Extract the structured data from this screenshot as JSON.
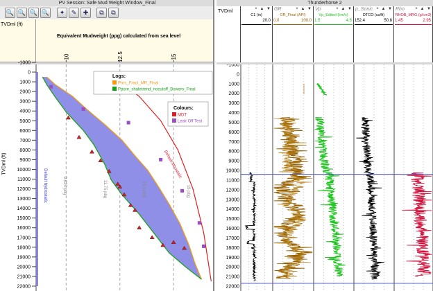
{
  "left_window": {
    "title": "PV Session: Safe Mud Weight Window_Final",
    "toolbar": [
      {
        "name": "zoom-in-icon",
        "glyph": "🔍"
      },
      {
        "name": "zoom-out-icon",
        "glyph": "🔍"
      },
      {
        "name": "zoom-box-icon",
        "glyph": "🔍"
      },
      {
        "name": "zoom-fit-icon",
        "glyph": "🔍"
      },
      {
        "name": "highlight-icon",
        "glyph": "✦"
      },
      {
        "name": "pencil-icon",
        "glyph": "✎"
      },
      {
        "name": "pointer-icon",
        "glyph": "✚"
      },
      {
        "name": "copy-icon",
        "glyph": "⧉"
      },
      {
        "name": "paste-icon",
        "glyph": "⧉"
      }
    ],
    "depth_header": "TVDml (ft)",
    "chart_title": "Equivalent Mudweight (ppg) calculated from sea level",
    "depth_axis_label": "TVDml (ft)"
  },
  "right_window": {
    "title": "Thunderhorse 2",
    "depth_header": "TVDml",
    "track_header_controls": "× ▲ ▼"
  },
  "tracks": [
    {
      "id": "c1",
      "name": "C1",
      "label": "C1 (in)",
      "min": "",
      "max": "20.0",
      "color": "#000000"
    },
    {
      "id": "gr",
      "name": "GR",
      "label": "GR_Final (API)",
      "min": "0.0",
      "max": "100.0",
      "color": "#9a6200"
    },
    {
      "id": "vp",
      "name": "Vp",
      "label": "Vp_Edited (km/s)",
      "min": "1.5",
      "max": "4.5",
      "color": "#1cc41c"
    },
    {
      "id": "psonic",
      "name": "p_Sonic",
      "label": "DTCO (us/ft)",
      "min": "152.4",
      "max": "50.8",
      "color": "#000000"
    },
    {
      "id": "rho",
      "name": "Rho",
      "label": "RHOB_MRG (g/cm3)",
      "min": "1.45",
      "max": "2.95",
      "color": "#d0103a"
    }
  ],
  "chart_data": {
    "type": "area",
    "x_ticks": [
      "10",
      "12.5",
      "15"
    ],
    "xlim": [
      8.6,
      16.9
    ],
    "y_ticks": [
      "-1000",
      "0",
      "1000",
      "2000",
      "3000",
      "4000",
      "5000",
      "6000",
      "7000",
      "8000",
      "9000",
      "10000",
      "11000",
      "12000",
      "13000",
      "14000",
      "15000",
      "16000",
      "17000",
      "18000",
      "19000",
      "20000",
      "21000",
      "22000"
    ],
    "ylim": [
      -1000,
      22500
    ],
    "legend_logs_title": "Logs:",
    "legend_logs": [
      {
        "name": "Pnrs_Fract_MR_Final",
        "color": "#f29a1a"
      },
      {
        "name": "Ppore_shaletrend_nocutoff_Bowers_Final",
        "color": "#1aa01a"
      }
    ],
    "legend_colours_title": "Colours:",
    "legend_colours": [
      {
        "name": "MDT",
        "color": "#d81b2a"
      },
      {
        "name": "Leak Off Test",
        "color": "#9b4fc4"
      }
    ],
    "annotations": [
      {
        "text": "Default hydrostatic",
        "color": "#3a3acc"
      },
      {
        "text": "Default lithostatic",
        "color": "#d81b2a"
      },
      {
        "text": "9.625 pbg",
        "color": "#888888"
      },
      {
        "text": "11.75 pbg",
        "color": "#888888"
      },
      {
        "text": "13.5 pbg",
        "color": "#888888"
      },
      {
        "text": "16 pbg",
        "color": "#888888"
      }
    ],
    "series": [
      {
        "name": "Pnrs_Fract_MR_Final",
        "x": [
          9.1,
          9.5,
          10.3,
          11.0,
          11.8,
          12.6,
          13.2,
          13.8,
          14.3,
          14.8,
          15.3,
          15.7,
          16.0,
          16.3
        ],
        "y": [
          500,
          1300,
          2500,
          3900,
          5400,
          7000,
          8600,
          10100,
          11800,
          13600,
          15600,
          17700,
          19700,
          21300
        ]
      },
      {
        "name": "Ppore_shaletrend_nocutoff_Bowers_Final",
        "x": [
          8.9,
          9.1,
          9.5,
          10.0,
          10.8,
          11.3,
          11.8,
          12.1,
          12.6,
          13.4,
          14.1,
          14.8,
          15.6,
          16.3
        ],
        "y": [
          500,
          1300,
          2600,
          4100,
          6000,
          7500,
          9500,
          11100,
          12600,
          14600,
          16600,
          18600,
          20100,
          21300
        ]
      },
      {
        "name": "Default lithostatic",
        "x": [
          12.2,
          13.4,
          14.4,
          15.2,
          15.9,
          16.4,
          16.75
        ],
        "y": [
          500,
          2500,
          5000,
          8000,
          12000,
          16500,
          21500
        ]
      },
      {
        "name": "Default hydrostatic",
        "x": [
          8.65,
          8.65
        ],
        "y": [
          0,
          22000
        ]
      }
    ],
    "mdt_points": {
      "x": [
        10.1,
        10.6,
        11.2,
        11.6,
        12.0,
        12.4,
        12.5,
        12.7,
        13.0,
        13.2,
        13.4,
        14.0,
        14.5,
        15.0,
        15.5
      ],
      "y": [
        4700,
        6700,
        8200,
        9100,
        10200,
        11500,
        11800,
        12600,
        13700,
        14200,
        16000,
        17000,
        17800,
        17500,
        18100
      ]
    },
    "lot_points": {
      "x": [
        9.3,
        10.8,
        12.9,
        14.4,
        15.4,
        16.2,
        16.4
      ],
      "y": [
        1500,
        3800,
        5200,
        9000,
        12200,
        15500,
        17900
      ]
    }
  }
}
